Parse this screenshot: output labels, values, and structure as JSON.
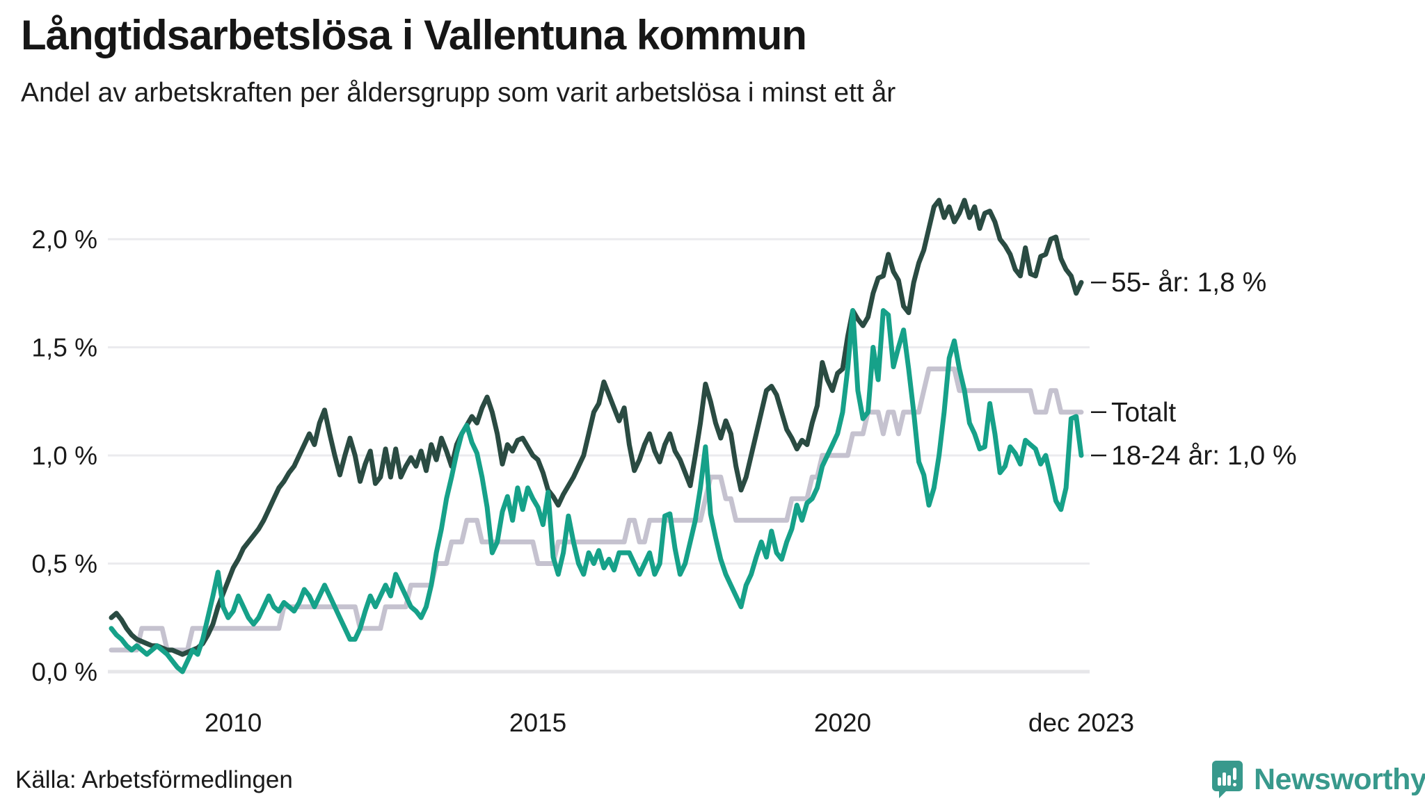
{
  "header": {
    "title": "Långtidsarbetslösa i Vallentuna kommun",
    "subtitle": "Andel av arbetskraften per åldersgrupp som varit arbetslösa i minst ett år"
  },
  "source": {
    "label": "Källa: Arbetsförmedlingen"
  },
  "branding": {
    "name": "Newsworthy",
    "color": "#38998c",
    "icon": "speech-bubble-bar-chart"
  },
  "colors": {
    "series_55": "#2a4b42",
    "series_total": "#c5c2cf",
    "series_18_24": "#16a189",
    "gridline": "#ebebee",
    "axisline": "#e6e6e9",
    "text": "#1a1a1a"
  },
  "chart_data": {
    "type": "line",
    "title": "Långtidsarbetslösa i Vallentuna kommun",
    "subtitle": "Andel av arbetskraften per åldersgrupp som varit arbetslösa i minst ett år",
    "xlabel": "",
    "ylabel": "",
    "x_unit": "month",
    "x_start": "2008-01",
    "x_end": "2023-12",
    "n_points": 192,
    "ylim": [
      0,
      2.3
    ],
    "grid": true,
    "legend_position": "right-end-labels",
    "y_ticks": [
      {
        "label": "0,0 %",
        "value": 0.0
      },
      {
        "label": "0,5 %",
        "value": 0.5
      },
      {
        "label": "1,0 %",
        "value": 1.0
      },
      {
        "label": "1,5 %",
        "value": 1.5
      },
      {
        "label": "2,0 %",
        "value": 2.0
      }
    ],
    "x_ticks": [
      {
        "label": "2010",
        "month_index": 24
      },
      {
        "label": "2015",
        "month_index": 84
      },
      {
        "label": "2020",
        "month_index": 144
      },
      {
        "label": "dec 2023",
        "month_index": 191
      }
    ],
    "series": [
      {
        "name": "Totalt",
        "end_label": "Totalt",
        "end_value": 1.2,
        "color": "#c5c2cf",
        "values": [
          0.1,
          0.1,
          0.1,
          0.1,
          0.1,
          0.1,
          0.2,
          0.2,
          0.2,
          0.2,
          0.2,
          0.1,
          0.1,
          0.1,
          0.1,
          0.1,
          0.2,
          0.2,
          0.2,
          0.2,
          0.2,
          0.2,
          0.2,
          0.2,
          0.2,
          0.2,
          0.2,
          0.2,
          0.2,
          0.2,
          0.2,
          0.2,
          0.2,
          0.2,
          0.3,
          0.3,
          0.3,
          0.3,
          0.3,
          0.3,
          0.3,
          0.3,
          0.3,
          0.3,
          0.3,
          0.3,
          0.3,
          0.3,
          0.3,
          0.2,
          0.2,
          0.2,
          0.2,
          0.2,
          0.3,
          0.3,
          0.3,
          0.3,
          0.3,
          0.4,
          0.4,
          0.4,
          0.4,
          0.4,
          0.5,
          0.5,
          0.5,
          0.6,
          0.6,
          0.6,
          0.7,
          0.7,
          0.7,
          0.6,
          0.6,
          0.6,
          0.6,
          0.6,
          0.6,
          0.6,
          0.6,
          0.6,
          0.6,
          0.6,
          0.5,
          0.5,
          0.5,
          0.5,
          0.6,
          0.6,
          0.6,
          0.6,
          0.6,
          0.6,
          0.6,
          0.6,
          0.6,
          0.6,
          0.6,
          0.6,
          0.6,
          0.6,
          0.7,
          0.7,
          0.6,
          0.6,
          0.7,
          0.7,
          0.7,
          0.7,
          0.7,
          0.7,
          0.7,
          0.7,
          0.7,
          0.7,
          0.7,
          0.8,
          0.9,
          0.9,
          0.9,
          0.8,
          0.8,
          0.7,
          0.7,
          0.7,
          0.7,
          0.7,
          0.7,
          0.7,
          0.7,
          0.7,
          0.7,
          0.7,
          0.8,
          0.8,
          0.8,
          0.8,
          0.9,
          0.9,
          1.0,
          1.0,
          1.0,
          1.0,
          1.0,
          1.0,
          1.1,
          1.1,
          1.1,
          1.2,
          1.2,
          1.2,
          1.1,
          1.2,
          1.2,
          1.1,
          1.2,
          1.2,
          1.2,
          1.2,
          1.3,
          1.4,
          1.4,
          1.4,
          1.4,
          1.4,
          1.4,
          1.3,
          1.3,
          1.3,
          1.3,
          1.3,
          1.3,
          1.3,
          1.3,
          1.3,
          1.3,
          1.3,
          1.3,
          1.3,
          1.3,
          1.3,
          1.2,
          1.2,
          1.2,
          1.3,
          1.3,
          1.2,
          1.2,
          1.2,
          1.2,
          1.2
        ]
      },
      {
        "name": "55- år",
        "end_label": "55- år: 1,8 %",
        "end_value": 1.8,
        "color": "#2a4b42",
        "values": [
          0.25,
          0.27,
          0.24,
          0.2,
          0.17,
          0.15,
          0.14,
          0.13,
          0.12,
          0.12,
          0.11,
          0.1,
          0.1,
          0.09,
          0.08,
          0.09,
          0.1,
          0.11,
          0.13,
          0.17,
          0.22,
          0.3,
          0.36,
          0.42,
          0.48,
          0.52,
          0.57,
          0.6,
          0.63,
          0.66,
          0.7,
          0.75,
          0.8,
          0.85,
          0.88,
          0.92,
          0.95,
          1.0,
          1.05,
          1.1,
          1.05,
          1.15,
          1.21,
          1.1,
          1.0,
          0.91,
          1.0,
          1.08,
          1.0,
          0.88,
          0.96,
          1.02,
          0.87,
          0.9,
          1.03,
          0.9,
          1.03,
          0.9,
          0.95,
          0.99,
          0.95,
          1.02,
          0.93,
          1.05,
          0.98,
          1.08,
          1.02,
          0.95,
          1.05,
          1.1,
          1.14,
          1.18,
          1.15,
          1.22,
          1.27,
          1.2,
          1.1,
          0.96,
          1.05,
          1.02,
          1.07,
          1.08,
          1.04,
          1.0,
          0.98,
          0.92,
          0.84,
          0.81,
          0.77,
          0.82,
          0.86,
          0.9,
          0.95,
          1.0,
          1.1,
          1.2,
          1.24,
          1.34,
          1.28,
          1.22,
          1.16,
          1.22,
          1.05,
          0.93,
          0.98,
          1.05,
          1.1,
          1.02,
          0.97,
          1.05,
          1.1,
          1.02,
          0.98,
          0.92,
          0.86,
          1.0,
          1.15,
          1.33,
          1.25,
          1.15,
          1.08,
          1.16,
          1.1,
          0.95,
          0.84,
          0.9,
          1.0,
          1.1,
          1.2,
          1.3,
          1.32,
          1.28,
          1.2,
          1.12,
          1.08,
          1.03,
          1.07,
          1.05,
          1.15,
          1.23,
          1.43,
          1.35,
          1.3,
          1.38,
          1.4,
          1.55,
          1.67,
          1.63,
          1.6,
          1.64,
          1.75,
          1.82,
          1.83,
          1.93,
          1.85,
          1.81,
          1.69,
          1.66,
          1.8,
          1.89,
          1.95,
          2.05,
          2.15,
          2.18,
          2.1,
          2.15,
          2.08,
          2.12,
          2.18,
          2.1,
          2.15,
          2.05,
          2.12,
          2.13,
          2.08,
          2.0,
          1.97,
          1.93,
          1.86,
          1.83,
          1.96,
          1.84,
          1.83,
          1.92,
          1.93,
          2.0,
          2.01,
          1.91,
          1.86,
          1.83,
          1.75,
          1.8
        ]
      },
      {
        "name": "18-24 år",
        "end_label": "18-24 år: 1,0 %",
        "end_value": 1.0,
        "color": "#16a189",
        "values": [
          0.2,
          0.17,
          0.15,
          0.12,
          0.1,
          0.12,
          0.1,
          0.08,
          0.1,
          0.12,
          0.1,
          0.08,
          0.05,
          0.02,
          0.0,
          0.05,
          0.1,
          0.08,
          0.15,
          0.25,
          0.35,
          0.46,
          0.3,
          0.25,
          0.28,
          0.35,
          0.3,
          0.25,
          0.22,
          0.25,
          0.3,
          0.35,
          0.3,
          0.28,
          0.32,
          0.3,
          0.28,
          0.32,
          0.38,
          0.35,
          0.3,
          0.35,
          0.4,
          0.35,
          0.3,
          0.25,
          0.2,
          0.15,
          0.15,
          0.2,
          0.28,
          0.35,
          0.3,
          0.35,
          0.4,
          0.35,
          0.45,
          0.4,
          0.35,
          0.3,
          0.28,
          0.25,
          0.3,
          0.4,
          0.55,
          0.66,
          0.8,
          0.9,
          1.01,
          1.1,
          1.14,
          1.06,
          1.01,
          0.9,
          0.76,
          0.55,
          0.6,
          0.74,
          0.81,
          0.7,
          0.85,
          0.75,
          0.85,
          0.8,
          0.76,
          0.68,
          0.83,
          0.53,
          0.45,
          0.55,
          0.72,
          0.6,
          0.5,
          0.45,
          0.55,
          0.5,
          0.56,
          0.48,
          0.52,
          0.47,
          0.55,
          0.55,
          0.55,
          0.5,
          0.45,
          0.5,
          0.55,
          0.45,
          0.5,
          0.72,
          0.73,
          0.57,
          0.45,
          0.5,
          0.6,
          0.7,
          0.85,
          1.04,
          0.73,
          0.62,
          0.52,
          0.45,
          0.4,
          0.35,
          0.3,
          0.4,
          0.45,
          0.53,
          0.6,
          0.53,
          0.65,
          0.55,
          0.52,
          0.6,
          0.66,
          0.77,
          0.7,
          0.78,
          0.8,
          0.85,
          0.95,
          1.0,
          1.05,
          1.1,
          1.2,
          1.4,
          1.67,
          1.3,
          1.17,
          1.2,
          1.5,
          1.35,
          1.67,
          1.65,
          1.41,
          1.5,
          1.58,
          1.4,
          1.2,
          0.97,
          0.91,
          0.77,
          0.85,
          1.0,
          1.2,
          1.45,
          1.53,
          1.4,
          1.3,
          1.15,
          1.1,
          1.03,
          1.04,
          1.24,
          1.1,
          0.92,
          0.95,
          1.04,
          1.01,
          0.96,
          1.07,
          1.05,
          1.03,
          0.96,
          1.0,
          0.9,
          0.79,
          0.75,
          0.85,
          1.17,
          1.18,
          1.0
        ]
      }
    ]
  }
}
